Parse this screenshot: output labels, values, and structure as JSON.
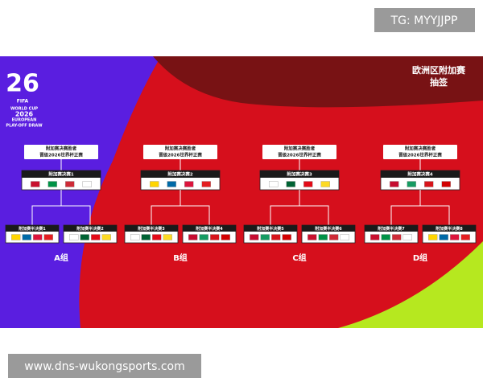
{
  "watermark_top": "TG: MYYJJPP",
  "watermark_bottom": "www.dns-wukongsports.com",
  "header": {
    "title": "欧洲区附加赛",
    "subtitle": "抽签"
  },
  "logo": {
    "number": "26",
    "brand": "FIFA",
    "lines": [
      "WORLD CUP",
      "2026",
      "EUROPEAN",
      "PLAY-OFF DRAW"
    ]
  },
  "paths": [
    {
      "winner": [
        "附加赛决赛胜者",
        "晋级2026世界杯正赛"
      ],
      "final": "附加赛决赛1",
      "semis": [
        "附加赛半决赛1",
        "附加赛半决赛2"
      ],
      "group": "A组"
    },
    {
      "winner": [
        "附加赛决赛胜者",
        "晋级2026世界杯正赛"
      ],
      "final": "附加赛决赛2",
      "semis": [
        "附加赛半决赛3",
        "附加赛半决赛4"
      ],
      "group": "B组"
    },
    {
      "winner": [
        "附加赛决赛胜者",
        "晋级2026世界杯正赛"
      ],
      "final": "附加赛决赛3",
      "semis": [
        "附加赛半决赛5",
        "附加赛半决赛6"
      ],
      "group": "C组"
    },
    {
      "winner": [
        "附加赛决赛胜者",
        "晋级2026世界杯正赛"
      ],
      "final": "附加赛决赛4",
      "semis": [
        "附加赛半决赛7",
        "附加赛半决赛8"
      ],
      "group": "D组"
    }
  ]
}
